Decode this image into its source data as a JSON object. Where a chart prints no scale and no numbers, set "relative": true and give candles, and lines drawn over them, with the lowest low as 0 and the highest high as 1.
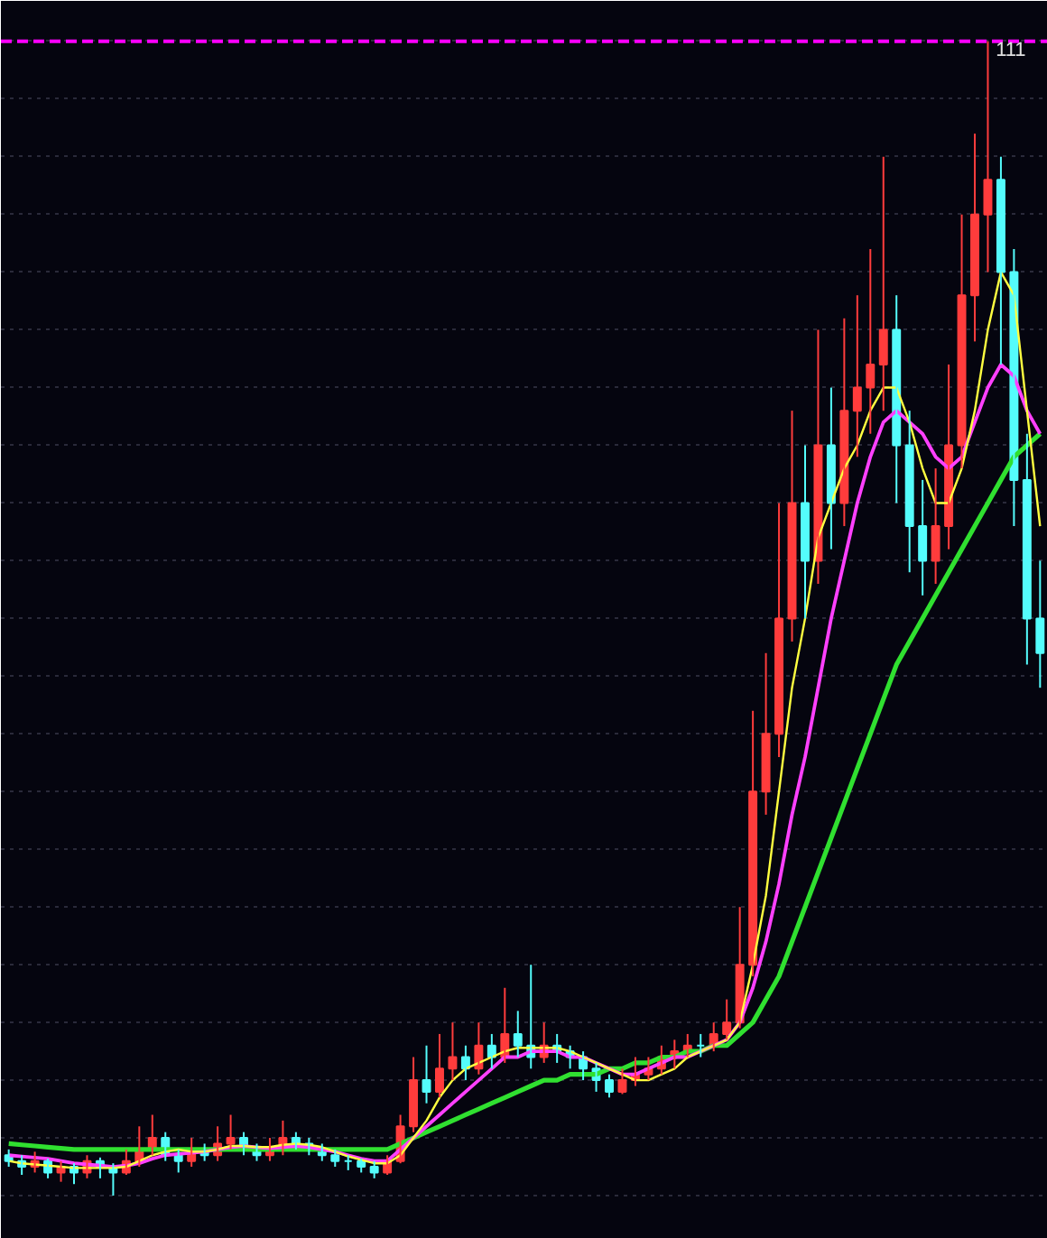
{
  "chart_data": {
    "type": "candlestick",
    "relative": true,
    "grid": "y",
    "categories": [
      null,
      null,
      null,
      null,
      null,
      null,
      null,
      null,
      null,
      null,
      null,
      null,
      null,
      null,
      null,
      null,
      null,
      null,
      null,
      null,
      null,
      null,
      null,
      null,
      null,
      null,
      null,
      null,
      null,
      null,
      null,
      null,
      null,
      null,
      null,
      null,
      null,
      null,
      null,
      null,
      null,
      null,
      null,
      null,
      null,
      null,
      null,
      null,
      null,
      null,
      null,
      null,
      null,
      null,
      null,
      null,
      null,
      null,
      null,
      null,
      null,
      null,
      null,
      null,
      null,
      null,
      null,
      null,
      null,
      null,
      null,
      null,
      null,
      null,
      null,
      null,
      null,
      null,
      null,
      null
    ],
    "ohlc": [
      [
        0.035,
        0.04,
        0.025,
        0.03
      ],
      [
        0.03,
        0.035,
        0.018,
        0.025
      ],
      [
        0.025,
        0.038,
        0.02,
        0.03
      ],
      [
        0.03,
        0.032,
        0.015,
        0.02
      ],
      [
        0.02,
        0.03,
        0.012,
        0.025
      ],
      [
        0.025,
        0.028,
        0.01,
        0.02
      ],
      [
        0.02,
        0.035,
        0.015,
        0.03
      ],
      [
        0.03,
        0.033,
        0.015,
        0.025
      ],
      [
        0.025,
        0.028,
        0.0,
        0.02
      ],
      [
        0.02,
        0.04,
        0.018,
        0.03
      ],
      [
        0.03,
        0.06,
        0.025,
        0.04
      ],
      [
        0.04,
        0.07,
        0.035,
        0.05
      ],
      [
        0.05,
        0.055,
        0.03,
        0.035
      ],
      [
        0.035,
        0.04,
        0.02,
        0.03
      ],
      [
        0.03,
        0.05,
        0.025,
        0.04
      ],
      [
        0.04,
        0.045,
        0.03,
        0.035
      ],
      [
        0.035,
        0.06,
        0.03,
        0.045
      ],
      [
        0.045,
        0.07,
        0.04,
        0.05
      ],
      [
        0.05,
        0.055,
        0.035,
        0.04
      ],
      [
        0.04,
        0.045,
        0.03,
        0.035
      ],
      [
        0.035,
        0.05,
        0.03,
        0.04
      ],
      [
        0.04,
        0.065,
        0.035,
        0.05
      ],
      [
        0.05,
        0.055,
        0.04,
        0.045
      ],
      [
        0.045,
        0.05,
        0.035,
        0.04
      ],
      [
        0.04,
        0.045,
        0.03,
        0.035
      ],
      [
        0.035,
        0.04,
        0.025,
        0.03
      ],
      [
        0.03,
        0.035,
        0.022,
        0.03
      ],
      [
        0.03,
        0.032,
        0.02,
        0.025
      ],
      [
        0.025,
        0.03,
        0.015,
        0.02
      ],
      [
        0.02,
        0.035,
        0.018,
        0.03
      ],
      [
        0.03,
        0.07,
        0.028,
        0.06
      ],
      [
        0.06,
        0.12,
        0.055,
        0.1
      ],
      [
        0.1,
        0.13,
        0.08,
        0.09
      ],
      [
        0.09,
        0.14,
        0.085,
        0.11
      ],
      [
        0.11,
        0.15,
        0.1,
        0.12
      ],
      [
        0.12,
        0.13,
        0.1,
        0.11
      ],
      [
        0.11,
        0.15,
        0.105,
        0.13
      ],
      [
        0.13,
        0.14,
        0.11,
        0.12
      ],
      [
        0.12,
        0.18,
        0.115,
        0.14
      ],
      [
        0.14,
        0.16,
        0.12,
        0.13
      ],
      [
        0.13,
        0.2,
        0.11,
        0.12
      ],
      [
        0.12,
        0.15,
        0.115,
        0.13
      ],
      [
        0.13,
        0.14,
        0.115,
        0.125
      ],
      [
        0.125,
        0.13,
        0.11,
        0.12
      ],
      [
        0.12,
        0.125,
        0.1,
        0.11
      ],
      [
        0.11,
        0.115,
        0.09,
        0.1
      ],
      [
        0.1,
        0.105,
        0.085,
        0.09
      ],
      [
        0.09,
        0.11,
        0.088,
        0.1
      ],
      [
        0.1,
        0.12,
        0.095,
        0.105
      ],
      [
        0.105,
        0.12,
        0.1,
        0.11
      ],
      [
        0.11,
        0.13,
        0.105,
        0.12
      ],
      [
        0.12,
        0.135,
        0.11,
        0.125
      ],
      [
        0.125,
        0.14,
        0.12,
        0.13
      ],
      [
        0.13,
        0.14,
        0.12,
        0.13
      ],
      [
        0.13,
        0.15,
        0.125,
        0.14
      ],
      [
        0.14,
        0.17,
        0.135,
        0.15
      ],
      [
        0.15,
        0.25,
        0.145,
        0.2
      ],
      [
        0.2,
        0.42,
        0.19,
        0.35
      ],
      [
        0.35,
        0.47,
        0.33,
        0.4
      ],
      [
        0.4,
        0.6,
        0.38,
        0.5
      ],
      [
        0.5,
        0.68,
        0.48,
        0.6
      ],
      [
        0.6,
        0.65,
        0.5,
        0.55
      ],
      [
        0.55,
        0.75,
        0.53,
        0.65
      ],
      [
        0.65,
        0.7,
        0.56,
        0.6
      ],
      [
        0.6,
        0.76,
        0.58,
        0.68
      ],
      [
        0.68,
        0.78,
        0.64,
        0.7
      ],
      [
        0.7,
        0.82,
        0.66,
        0.72
      ],
      [
        0.72,
        0.9,
        0.68,
        0.75
      ],
      [
        0.75,
        0.78,
        0.6,
        0.65
      ],
      [
        0.65,
        0.68,
        0.54,
        0.58
      ],
      [
        0.58,
        0.62,
        0.52,
        0.55
      ],
      [
        0.55,
        0.63,
        0.53,
        0.58
      ],
      [
        0.58,
        0.72,
        0.56,
        0.65
      ],
      [
        0.65,
        0.85,
        0.63,
        0.78
      ],
      [
        0.78,
        0.92,
        0.74,
        0.85
      ],
      [
        0.85,
        1.0,
        0.8,
        0.88
      ],
      [
        0.88,
        0.9,
        0.72,
        0.8
      ],
      [
        0.8,
        0.82,
        0.58,
        0.62
      ],
      [
        0.62,
        0.66,
        0.46,
        0.5
      ],
      [
        0.5,
        0.55,
        0.44,
        0.47
      ]
    ],
    "colors": [
      "#54fcfc",
      "#54fcfc",
      "#ff3c3c",
      "#54fcfc",
      "#ff3c3c",
      "#54fcfc",
      "#ff3c3c",
      "#54fcfc",
      "#54fcfc",
      "#ff3c3c",
      "#ff3c3c",
      "#ff3c3c",
      "#54fcfc",
      "#54fcfc",
      "#ff3c3c",
      "#54fcfc",
      "#ff3c3c",
      "#ff3c3c",
      "#54fcfc",
      "#54fcfc",
      "#ff3c3c",
      "#ff3c3c",
      "#54fcfc",
      "#54fcfc",
      "#54fcfc",
      "#54fcfc",
      "#54fcfc",
      "#54fcfc",
      "#54fcfc",
      "#ff3c3c",
      "#ff3c3c",
      "#ff3c3c",
      "#54fcfc",
      "#ff3c3c",
      "#ff3c3c",
      "#54fcfc",
      "#ff3c3c",
      "#54fcfc",
      "#ff3c3c",
      "#54fcfc",
      "#54fcfc",
      "#ff3c3c",
      "#54fcfc",
      "#54fcfc",
      "#54fcfc",
      "#54fcfc",
      "#54fcfc",
      "#ff3c3c",
      "#ff3c3c",
      "#ff3c3c",
      "#ff3c3c",
      "#ff3c3c",
      "#ff3c3c",
      "#54fcfc",
      "#ff3c3c",
      "#ff3c3c",
      "#ff3c3c",
      "#ff3c3c",
      "#ff3c3c",
      "#ff3c3c",
      "#ff3c3c",
      "#54fcfc",
      "#ff3c3c",
      "#54fcfc",
      "#ff3c3c",
      "#ff3c3c",
      "#ff3c3c",
      "#ff3c3c",
      "#54fcfc",
      "#54fcfc",
      "#54fcfc",
      "#ff3c3c",
      "#ff3c3c",
      "#ff3c3c",
      "#ff3c3c",
      "#ff3c3c",
      "#54fcfc",
      "#54fcfc",
      "#54fcfc",
      "#54fcfc"
    ],
    "series": [
      {
        "type": "line",
        "color": "#ffff40",
        "values": [
          0.03,
          0.028,
          0.027,
          0.026,
          0.025,
          0.024,
          0.024,
          0.024,
          0.024,
          0.025,
          0.03,
          0.035,
          0.038,
          0.04,
          0.038,
          0.038,
          0.04,
          0.043,
          0.043,
          0.042,
          0.042,
          0.044,
          0.045,
          0.044,
          0.042,
          0.038,
          0.034,
          0.031,
          0.028,
          0.028,
          0.035,
          0.05,
          0.065,
          0.085,
          0.1,
          0.11,
          0.115,
          0.12,
          0.125,
          0.128,
          0.128,
          0.128,
          0.128,
          0.125,
          0.12,
          0.115,
          0.11,
          0.105,
          0.1,
          0.1,
          0.105,
          0.11,
          0.12,
          0.125,
          0.13,
          0.135,
          0.15,
          0.2,
          0.26,
          0.35,
          0.44,
          0.5,
          0.57,
          0.6,
          0.63,
          0.65,
          0.68,
          0.7,
          0.7,
          0.67,
          0.63,
          0.6,
          0.6,
          0.63,
          0.68,
          0.75,
          0.8,
          0.78,
          0.68,
          0.58
        ]
      },
      {
        "type": "line",
        "color": "#ff40ff",
        "values": [
          0.035,
          0.034,
          0.033,
          0.032,
          0.03,
          0.028,
          0.027,
          0.026,
          0.025,
          0.026,
          0.028,
          0.032,
          0.035,
          0.036,
          0.037,
          0.038,
          0.04,
          0.042,
          0.043,
          0.042,
          0.041,
          0.042,
          0.043,
          0.042,
          0.04,
          0.038,
          0.035,
          0.032,
          0.03,
          0.03,
          0.04,
          0.05,
          0.06,
          0.07,
          0.08,
          0.09,
          0.1,
          0.11,
          0.12,
          0.12,
          0.125,
          0.125,
          0.125,
          0.12,
          0.12,
          0.115,
          0.11,
          0.105,
          0.105,
          0.11,
          0.115,
          0.12,
          0.12,
          0.125,
          0.13,
          0.135,
          0.15,
          0.18,
          0.22,
          0.27,
          0.33,
          0.38,
          0.44,
          0.5,
          0.55,
          0.6,
          0.64,
          0.67,
          0.68,
          0.67,
          0.66,
          0.64,
          0.63,
          0.64,
          0.67,
          0.7,
          0.72,
          0.71,
          0.68,
          0.66
        ]
      },
      {
        "type": "line",
        "color": "#30e030",
        "values": [
          0.045,
          0.044,
          0.043,
          0.042,
          0.041,
          0.04,
          0.04,
          0.04,
          0.04,
          0.04,
          0.04,
          0.04,
          0.04,
          0.04,
          0.04,
          0.04,
          0.04,
          0.04,
          0.04,
          0.04,
          0.04,
          0.04,
          0.04,
          0.04,
          0.04,
          0.04,
          0.04,
          0.04,
          0.04,
          0.04,
          0.045,
          0.05,
          0.055,
          0.06,
          0.065,
          0.07,
          0.075,
          0.08,
          0.085,
          0.09,
          0.095,
          0.1,
          0.1,
          0.105,
          0.105,
          0.105,
          0.11,
          0.11,
          0.115,
          0.115,
          0.12,
          0.12,
          0.125,
          0.125,
          0.13,
          0.13,
          0.14,
          0.15,
          0.17,
          0.19,
          0.22,
          0.25,
          0.28,
          0.31,
          0.34,
          0.37,
          0.4,
          0.43,
          0.46,
          0.48,
          0.5,
          0.52,
          0.54,
          0.56,
          0.58,
          0.6,
          0.62,
          0.64,
          0.65,
          0.66
        ]
      }
    ],
    "ref_lines": [
      {
        "axis": "y",
        "value": 1,
        "color": "#ff00ff",
        "line_style": "dashed"
      }
    ],
    "annotations": [
      "111"
    ]
  }
}
